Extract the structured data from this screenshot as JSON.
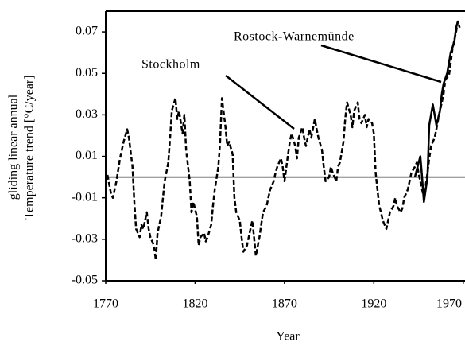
{
  "chart_data": {
    "type": "line",
    "ylabel": [
      "gliding linear annual",
      "Temperature trend [°C/year]"
    ],
    "xlabel": "Year",
    "xlim": [
      1770,
      1971
    ],
    "xticks": [
      1770,
      1820,
      1870,
      1920,
      1970
    ],
    "ylim": [
      -0.05,
      0.08
    ],
    "yticks": [
      -0.05,
      -0.03,
      -0.01,
      0.01,
      0.03,
      0.05,
      0.07
    ],
    "hline": 0,
    "series": [
      {
        "name": "Stockholm",
        "color": "#000000",
        "dash": true,
        "x": [
          1771,
          1773,
          1774,
          1776,
          1778,
          1779,
          1780,
          1782,
          1783,
          1785,
          1786,
          1787,
          1789,
          1790,
          1791,
          1793,
          1794,
          1795,
          1797,
          1798,
          1799,
          1801,
          1802,
          1803,
          1805,
          1806,
          1807,
          1809,
          1810,
          1811,
          1813,
          1814,
          1815,
          1817,
          1818,
          1819,
          1821,
          1822,
          1823,
          1825,
          1826,
          1827,
          1829,
          1830,
          1831,
          1833,
          1834,
          1835,
          1837,
          1838,
          1839,
          1841,
          1842,
          1843,
          1845,
          1846,
          1847,
          1849,
          1850,
          1852,
          1853,
          1854,
          1856,
          1857,
          1858,
          1860,
          1861,
          1862,
          1864,
          1865,
          1866,
          1868,
          1869,
          1870,
          1872,
          1873,
          1874,
          1876,
          1877,
          1878,
          1880,
          1881,
          1882,
          1884,
          1885,
          1887,
          1888,
          1889,
          1891,
          1892,
          1893,
          1895,
          1896,
          1897,
          1899,
          1900,
          1901,
          1903,
          1904,
          1905,
          1907,
          1908,
          1909,
          1911,
          1912,
          1913,
          1915,
          1916,
          1917,
          1919,
          1920,
          1921,
          1923,
          1924,
          1925,
          1927,
          1928,
          1929,
          1931,
          1932,
          1933,
          1935,
          1936,
          1937,
          1939,
          1940,
          1941,
          1943,
          1944,
          1945,
          1947,
          1948,
          1950,
          1951,
          1952,
          1954,
          1955,
          1956,
          1958,
          1959,
          1960,
          1962,
          1963,
          1964,
          1966,
          1967,
          1968
        ],
        "values": [
          0.001,
          -0.008,
          -0.01,
          -0.002,
          0.009,
          0.013,
          0.017,
          0.023,
          0.019,
          0.005,
          -0.012,
          -0.025,
          -0.029,
          -0.023,
          -0.025,
          -0.017,
          -0.025,
          -0.029,
          -0.033,
          -0.04,
          -0.027,
          -0.019,
          -0.01,
          -0.002,
          0.007,
          0.019,
          0.032,
          0.038,
          0.028,
          0.032,
          0.021,
          0.03,
          0.013,
          -0.002,
          -0.017,
          -0.012,
          -0.019,
          -0.033,
          -0.029,
          -0.027,
          -0.031,
          -0.029,
          -0.023,
          -0.014,
          -0.006,
          0.005,
          0.017,
          0.038,
          0.024,
          0.015,
          0.017,
          0.011,
          -0.01,
          -0.017,
          -0.021,
          -0.029,
          -0.036,
          -0.033,
          -0.029,
          -0.021,
          -0.029,
          -0.038,
          -0.029,
          -0.023,
          -0.017,
          -0.014,
          -0.01,
          -0.006,
          -0.002,
          0.002,
          0.005,
          0.009,
          0.005,
          -0.002,
          0.011,
          0.017,
          0.021,
          0.015,
          0.009,
          0.019,
          0.024,
          0.019,
          0.015,
          0.023,
          0.019,
          0.028,
          0.023,
          0.019,
          0.013,
          0.005,
          -0.002,
          0,
          0.005,
          0.002,
          -0.002,
          0.005,
          0.007,
          0.017,
          0.028,
          0.036,
          0.03,
          0.024,
          0.032,
          0.036,
          0.028,
          0.026,
          0.03,
          0.024,
          0.028,
          0.026,
          0.021,
          0.002,
          -0.014,
          -0.017,
          -0.021,
          -0.025,
          -0.021,
          -0.017,
          -0.014,
          -0.01,
          -0.014,
          -0.017,
          -0.015,
          -0.01,
          -0.006,
          -0.002,
          0.002,
          0.005,
          0.007,
          0.002,
          -0.006,
          -0.01,
          0.002,
          0.009,
          0.015,
          0.019,
          0.023,
          0.028,
          0.036,
          0.04,
          0.047,
          0.049,
          0.055,
          0.062,
          0.07,
          0.075,
          0.072
        ]
      },
      {
        "name": "Rostock-Warnemünde",
        "color": "#000000",
        "dash": false,
        "x": [
          1943,
          1946,
          1947,
          1948,
          1950,
          1951,
          1953,
          1954,
          1955,
          1957,
          1958,
          1959,
          1961,
          1962,
          1963,
          1965,
          1966,
          1967
        ],
        "values": [
          0.0,
          0.01,
          0.0,
          -0.012,
          0.0,
          0.025,
          0.035,
          0.03,
          0.025,
          0.032,
          0.04,
          0.045,
          0.05,
          0.055,
          0.06,
          0.065,
          0.072,
          0.075
        ]
      }
    ]
  }
}
